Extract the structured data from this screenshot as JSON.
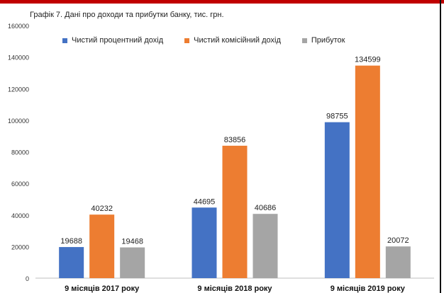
{
  "chart_data": {
    "type": "bar",
    "title": "Графік 7. Дані про доходи та прибутки банку, тис. грн.",
    "categories": [
      "9 місяців 2017 року",
      "9 місяців 2018 року",
      "9 місяців 2019 року"
    ],
    "series": [
      {
        "name": "Чистий процентний дохід",
        "color": "#4472c4",
        "values": [
          19688,
          44695,
          98755
        ]
      },
      {
        "name": "Чистий комісійний дохід",
        "color": "#ed7d31",
        "values": [
          40232,
          83856,
          134599
        ]
      },
      {
        "name": "Прибуток",
        "color": "#a5a5a5",
        "values": [
          19468,
          40686,
          20072
        ]
      }
    ],
    "ylim": [
      0,
      160000
    ],
    "yticks": [
      "0",
      "20000",
      "40000",
      "60000",
      "80000",
      "100000",
      "120000",
      "140000",
      "160000"
    ],
    "grid": false,
    "legend": "top"
  }
}
